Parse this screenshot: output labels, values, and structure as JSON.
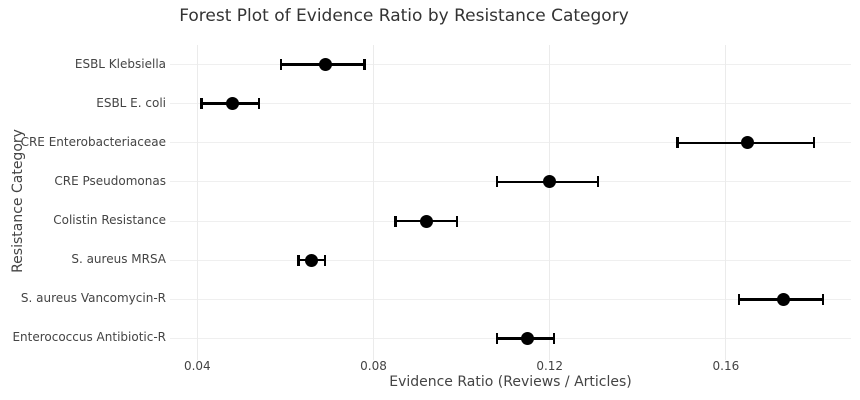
{
  "chart_data": {
    "type": "scatter",
    "subtype": "forest-plot",
    "title": "Forest Plot of Evidence Ratio by Resistance Category",
    "xlabel": "Evidence Ratio (Reviews / Articles)",
    "ylabel": "Resistance Category",
    "legend": false,
    "grid": true,
    "xlim": [
      0.0338,
      0.1884
    ],
    "x_ticks": [
      {
        "value": 0.04,
        "label": "0.04"
      },
      {
        "value": 0.08,
        "label": "0.08"
      },
      {
        "value": 0.12,
        "label": "0.12"
      },
      {
        "value": 0.16,
        "label": "0.16"
      }
    ],
    "categories": [
      "ESBL Klebsiella",
      "ESBL E. coli",
      "CRE Enterobacteriaceae",
      "CRE Pseudomonas",
      "Colistin Resistance",
      "S. aureus MRSA",
      "S. aureus Vancomycin-R",
      "Enterococcus Antibiotic-R"
    ],
    "points": [
      {
        "label": "ESBL Klebsiella",
        "value": 0.069,
        "ci_low": 0.059,
        "ci_high": 0.078
      },
      {
        "label": "ESBL E. coli",
        "value": 0.048,
        "ci_low": 0.041,
        "ci_high": 0.054
      },
      {
        "label": "CRE Enterobacteriaceae",
        "value": 0.165,
        "ci_low": 0.149,
        "ci_high": 0.18
      },
      {
        "label": "CRE Pseudomonas",
        "value": 0.12,
        "ci_low": 0.108,
        "ci_high": 0.131
      },
      {
        "label": "Colistin Resistance",
        "value": 0.092,
        "ci_low": 0.085,
        "ci_high": 0.099
      },
      {
        "label": "S. aureus MRSA",
        "value": 0.066,
        "ci_low": 0.063,
        "ci_high": 0.069
      },
      {
        "label": "S. aureus Vancomycin-R",
        "value": 0.173,
        "ci_low": 0.163,
        "ci_high": 0.182
      },
      {
        "label": "Enterococcus Antibiotic-R",
        "value": 0.115,
        "ci_low": 0.108,
        "ci_high": 0.121
      }
    ],
    "colors": {
      "marker": "#000000",
      "error_bar": "#000000",
      "grid": "#ebebeb",
      "text": "#444444",
      "title_text": "#333333",
      "background": "#ffffff"
    }
  }
}
